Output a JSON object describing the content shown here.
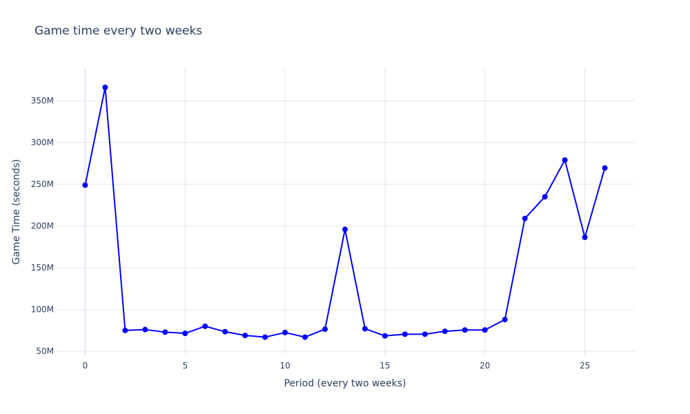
{
  "chart_data": {
    "type": "line",
    "title": "Game time every two weeks",
    "xlabel": "Period (every two weeks)",
    "ylabel": "Game Time (seconds)",
    "x": [
      0,
      1,
      2,
      3,
      4,
      5,
      6,
      7,
      8,
      9,
      10,
      11,
      12,
      13,
      14,
      15,
      16,
      17,
      18,
      19,
      20,
      21,
      22,
      23,
      24,
      25,
      26
    ],
    "series": [
      {
        "name": "",
        "values": [
          249000000,
          366000000,
          75000000,
          76000000,
          73000000,
          71500000,
          80000000,
          73500000,
          69000000,
          67000000,
          72500000,
          67000000,
          76500000,
          196000000,
          77000000,
          68500000,
          70500000,
          70500000,
          74000000,
          75500000,
          75500000,
          88000000,
          209000000,
          235000000,
          279000000,
          186500000,
          269500000
        ]
      }
    ],
    "xlim": [
      -1.5,
      27.5
    ],
    "ylim": [
      46000000,
      388000000
    ],
    "x_ticks": [
      0,
      5,
      10,
      15,
      20,
      25
    ],
    "x_tick_labels": [
      "0",
      "5",
      "10",
      "15",
      "20",
      "25"
    ],
    "y_ticks": [
      50000000,
      100000000,
      150000000,
      200000000,
      250000000,
      300000000,
      350000000
    ],
    "y_tick_labels": [
      "50M",
      "100M",
      "150M",
      "200M",
      "250M",
      "300M",
      "350M"
    ],
    "grid": true,
    "legend": "none",
    "colors": {
      "line": "#0000ff",
      "grid": "#e2e5ea",
      "zero_line": "#e8e8f8",
      "text": "#2a3f5f"
    }
  }
}
